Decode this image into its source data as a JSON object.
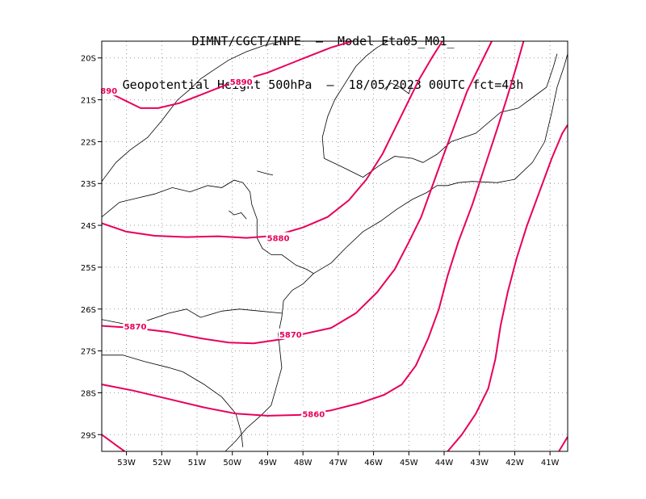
{
  "header": {
    "line1": "DIMNT/CGCT/INPE  –  Model Eta05_M01_",
    "line2": "Geopotential Height 500hPa  –  18/05/2023 00UTC fct=43h"
  },
  "colors": {
    "contour": "#e8005a",
    "coast": "#000000",
    "grid": "#9a9a9a"
  },
  "map": {
    "lon_range": [
      -53.7,
      -40.5
    ],
    "lat_range": [
      -29.4,
      -19.6
    ],
    "lat_ticks": [
      {
        "value": -20,
        "label": "20S"
      },
      {
        "value": -21,
        "label": "21S"
      },
      {
        "value": -22,
        "label": "22S"
      },
      {
        "value": -23,
        "label": "23S"
      },
      {
        "value": -24,
        "label": "24S"
      },
      {
        "value": -25,
        "label": "25S"
      },
      {
        "value": -26,
        "label": "26S"
      },
      {
        "value": -27,
        "label": "27S"
      },
      {
        "value": -28,
        "label": "28S"
      },
      {
        "value": -29,
        "label": "29S"
      }
    ],
    "lon_ticks": [
      {
        "value": -53,
        "label": "53W"
      },
      {
        "value": -52,
        "label": "52W"
      },
      {
        "value": -51,
        "label": "51W"
      },
      {
        "value": -50,
        "label": "50W"
      },
      {
        "value": -49,
        "label": "49W"
      },
      {
        "value": -48,
        "label": "48W"
      },
      {
        "value": -47,
        "label": "47W"
      },
      {
        "value": -46,
        "label": "46W"
      },
      {
        "value": -45,
        "label": "45W"
      },
      {
        "value": -44,
        "label": "44W"
      },
      {
        "value": -43,
        "label": "43W"
      },
      {
        "value": -42,
        "label": "42W"
      },
      {
        "value": -41,
        "label": "41W"
      }
    ],
    "contours": [
      {
        "label": "5890",
        "points": [
          [
            -53.7,
            -20.75
          ],
          [
            -53.2,
            -20.95
          ],
          [
            -52.6,
            -21.2
          ],
          [
            -52.1,
            -21.2
          ],
          [
            -51.5,
            -21.08
          ],
          [
            -50.8,
            -20.85
          ],
          [
            -50.2,
            -20.65
          ],
          [
            -49.6,
            -20.5
          ],
          [
            -49.0,
            -20.35
          ],
          [
            -48.4,
            -20.15
          ],
          [
            -47.8,
            -19.95
          ],
          [
            -47.2,
            -19.75
          ],
          [
            -46.6,
            -19.6
          ]
        ],
        "labels": [
          {
            "text": "5890",
            "lon": -49.75,
            "lat": -20.56
          },
          {
            "text": "890",
            "lon": -53.5,
            "lat": -20.78
          }
        ]
      },
      {
        "label": "5880",
        "points": [
          [
            -53.7,
            -23.95
          ],
          [
            -53.0,
            -24.15
          ],
          [
            -52.2,
            -24.25
          ],
          [
            -51.3,
            -24.28
          ],
          [
            -50.4,
            -24.26
          ],
          [
            -49.6,
            -24.3
          ],
          [
            -48.8,
            -24.25
          ],
          [
            -48.0,
            -24.05
          ],
          [
            -47.3,
            -23.8
          ],
          [
            -46.7,
            -23.4
          ],
          [
            -46.2,
            -22.9
          ],
          [
            -45.75,
            -22.3
          ],
          [
            -45.4,
            -21.7
          ],
          [
            -45.05,
            -21.1
          ],
          [
            -44.7,
            -20.5
          ],
          [
            -44.35,
            -20.0
          ],
          [
            -44.05,
            -19.6
          ]
        ],
        "labels": [
          {
            "text": "5880",
            "lon": -48.7,
            "lat": -24.3
          }
        ]
      },
      {
        "label": "5870",
        "points": [
          [
            -53.7,
            -26.4
          ],
          [
            -52.8,
            -26.45
          ],
          [
            -51.8,
            -26.55
          ],
          [
            -50.9,
            -26.7
          ],
          [
            -50.1,
            -26.8
          ],
          [
            -49.4,
            -26.82
          ],
          [
            -48.6,
            -26.72
          ],
          [
            -47.9,
            -26.58
          ],
          [
            -47.2,
            -26.45
          ],
          [
            -46.5,
            -26.1
          ],
          [
            -45.9,
            -25.6
          ],
          [
            -45.4,
            -25.05
          ],
          [
            -45.0,
            -24.4
          ],
          [
            -44.65,
            -23.8
          ],
          [
            -44.35,
            -23.1
          ],
          [
            -44.05,
            -22.4
          ],
          [
            -43.7,
            -21.6
          ],
          [
            -43.35,
            -20.8
          ],
          [
            -43.0,
            -20.2
          ],
          [
            -42.65,
            -19.6
          ]
        ],
        "labels": [
          {
            "text": "5870",
            "lon": -52.75,
            "lat": -26.41
          },
          {
            "text": "5870",
            "lon": -48.35,
            "lat": -26.6
          }
        ]
      },
      {
        "label": "5860",
        "points": [
          [
            -53.7,
            -27.8
          ],
          [
            -52.8,
            -27.95
          ],
          [
            -51.8,
            -28.15
          ],
          [
            -50.8,
            -28.35
          ],
          [
            -49.9,
            -28.5
          ],
          [
            -49.0,
            -28.55
          ],
          [
            -48.1,
            -28.53
          ],
          [
            -47.2,
            -28.42
          ],
          [
            -46.4,
            -28.25
          ],
          [
            -45.7,
            -28.05
          ],
          [
            -45.2,
            -27.8
          ],
          [
            -44.8,
            -27.35
          ],
          [
            -44.45,
            -26.7
          ],
          [
            -44.15,
            -26.0
          ],
          [
            -43.9,
            -25.2
          ],
          [
            -43.6,
            -24.4
          ],
          [
            -43.2,
            -23.5
          ],
          [
            -42.85,
            -22.6
          ],
          [
            -42.5,
            -21.7
          ],
          [
            -42.2,
            -20.9
          ],
          [
            -41.95,
            -20.2
          ],
          [
            -41.75,
            -19.6
          ]
        ],
        "labels": [
          {
            "text": "5860",
            "lon": -47.7,
            "lat": -28.5
          }
        ]
      },
      {
        "label": "",
        "points": [
          [
            -53.7,
            -29.0
          ],
          [
            -53.3,
            -29.25
          ],
          [
            -53.05,
            -29.4
          ]
        ],
        "labels": []
      },
      {
        "label": "",
        "points": [
          [
            -43.9,
            -29.4
          ],
          [
            -43.5,
            -29.0
          ],
          [
            -43.1,
            -28.5
          ],
          [
            -42.75,
            -27.9
          ],
          [
            -42.55,
            -27.2
          ],
          [
            -42.4,
            -26.4
          ],
          [
            -42.2,
            -25.6
          ],
          [
            -41.95,
            -24.8
          ],
          [
            -41.65,
            -24.0
          ],
          [
            -41.3,
            -23.2
          ],
          [
            -40.95,
            -22.4
          ],
          [
            -40.65,
            -21.8
          ],
          [
            -40.5,
            -21.6
          ]
        ],
        "labels": []
      },
      {
        "label": "",
        "points": [
          [
            -40.75,
            -29.4
          ],
          [
            -40.5,
            -29.05
          ]
        ],
        "labels": []
      }
    ],
    "coastlines": [
      [
        [
          -53.7,
          -22.95
        ],
        [
          -53.3,
          -22.5
        ],
        [
          -52.9,
          -22.2
        ],
        [
          -52.4,
          -21.9
        ],
        [
          -52.0,
          -21.5
        ],
        [
          -51.55,
          -21.0
        ],
        [
          -51.2,
          -20.75
        ],
        [
          -50.9,
          -20.5
        ],
        [
          -50.55,
          -20.3
        ],
        [
          -50.1,
          -20.05
        ],
        [
          -49.6,
          -19.85
        ],
        [
          -49.1,
          -19.7
        ],
        [
          -48.6,
          -19.6
        ]
      ],
      [
        [
          -53.7,
          -23.8
        ],
        [
          -53.2,
          -23.45
        ],
        [
          -52.7,
          -23.35
        ],
        [
          -52.2,
          -23.25
        ],
        [
          -51.7,
          -23.1
        ],
        [
          -51.2,
          -23.2
        ],
        [
          -50.7,
          -23.05
        ],
        [
          -50.3,
          -23.1
        ],
        [
          -49.95,
          -22.92
        ],
        [
          -49.7,
          -22.98
        ],
        [
          -49.5,
          -23.2
        ],
        [
          -49.45,
          -23.5
        ],
        [
          -49.3,
          -23.85
        ],
        [
          -49.3,
          -24.3
        ],
        [
          -49.15,
          -24.55
        ],
        [
          -48.9,
          -24.7
        ],
        [
          -48.6,
          -24.7
        ],
        [
          -48.2,
          -24.95
        ],
        [
          -47.9,
          -25.05
        ],
        [
          -47.7,
          -25.15
        ]
      ],
      [
        [
          -47.7,
          -25.15
        ],
        [
          -47.2,
          -24.9
        ],
        [
          -46.8,
          -24.55
        ],
        [
          -46.3,
          -24.15
        ],
        [
          -45.8,
          -23.9
        ],
        [
          -45.35,
          -23.62
        ],
        [
          -44.9,
          -23.38
        ],
        [
          -44.5,
          -23.22
        ],
        [
          -44.2,
          -23.05
        ],
        [
          -43.9,
          -23.05
        ],
        [
          -43.6,
          -22.98
        ],
        [
          -43.2,
          -22.95
        ],
        [
          -42.5,
          -22.98
        ],
        [
          -42.0,
          -22.9
        ],
        [
          -41.5,
          -22.5
        ],
        [
          -41.15,
          -22.0
        ],
        [
          -40.95,
          -21.3
        ],
        [
          -40.8,
          -20.7
        ],
        [
          -40.6,
          -20.2
        ],
        [
          -40.5,
          -19.9
        ]
      ],
      [
        [
          -47.7,
          -25.15
        ],
        [
          -48.0,
          -25.4
        ],
        [
          -48.3,
          -25.55
        ],
        [
          -48.55,
          -25.8
        ],
        [
          -48.6,
          -26.2
        ],
        [
          -48.7,
          -26.6
        ],
        [
          -48.65,
          -27.0
        ],
        [
          -48.6,
          -27.4
        ],
        [
          -48.75,
          -27.85
        ],
        [
          -48.9,
          -28.3
        ],
        [
          -49.2,
          -28.55
        ],
        [
          -49.6,
          -28.85
        ],
        [
          -49.9,
          -29.15
        ],
        [
          -50.2,
          -29.4
        ]
      ],
      [
        [
          -53.7,
          -26.25
        ],
        [
          -53.1,
          -26.35
        ],
        [
          -52.5,
          -26.3
        ],
        [
          -51.8,
          -26.1
        ],
        [
          -51.3,
          -26.0
        ],
        [
          -50.9,
          -26.2
        ],
        [
          -50.3,
          -26.05
        ],
        [
          -49.8,
          -26.0
        ],
        [
          -49.2,
          -26.05
        ],
        [
          -48.6,
          -26.1
        ]
      ],
      [
        [
          -53.7,
          -27.1
        ],
        [
          -53.1,
          -27.1
        ],
        [
          -52.5,
          -27.25
        ],
        [
          -51.8,
          -27.4
        ],
        [
          -51.4,
          -27.5
        ],
        [
          -50.8,
          -27.8
        ],
        [
          -50.3,
          -28.1
        ],
        [
          -49.9,
          -28.5
        ],
        [
          -49.75,
          -28.95
        ],
        [
          -49.7,
          -29.3
        ]
      ],
      [
        [
          -47.4,
          -22.4
        ],
        [
          -46.9,
          -22.6
        ],
        [
          -46.3,
          -22.85
        ],
        [
          -45.8,
          -22.55
        ],
        [
          -45.4,
          -22.35
        ],
        [
          -44.9,
          -22.4
        ],
        [
          -44.6,
          -22.5
        ],
        [
          -44.2,
          -22.3
        ],
        [
          -43.8,
          -22.0
        ],
        [
          -43.1,
          -21.8
        ],
        [
          -42.4,
          -21.3
        ],
        [
          -41.9,
          -21.2
        ],
        [
          -41.5,
          -20.95
        ],
        [
          -41.1,
          -20.7
        ],
        [
          -40.9,
          -20.2
        ],
        [
          -40.8,
          -19.9
        ]
      ],
      [
        [
          -47.4,
          -22.4
        ],
        [
          -47.45,
          -21.9
        ],
        [
          -47.3,
          -21.4
        ],
        [
          -47.1,
          -21.0
        ],
        [
          -46.8,
          -20.6
        ],
        [
          -46.5,
          -20.2
        ],
        [
          -46.2,
          -19.95
        ],
        [
          -45.9,
          -19.75
        ],
        [
          -45.6,
          -19.6
        ]
      ],
      [
        [
          -45.7,
          -20.75
        ],
        [
          -45.5,
          -20.6
        ],
        [
          -45.25,
          -20.7
        ],
        [
          -45.0,
          -20.85
        ],
        [
          -44.9,
          -20.6
        ]
      ],
      [
        [
          -50.1,
          -23.65
        ],
        [
          -49.95,
          -23.75
        ],
        [
          -49.75,
          -23.7
        ],
        [
          -49.6,
          -23.85
        ]
      ],
      [
        [
          -49.3,
          -22.7
        ],
        [
          -49.1,
          -22.75
        ],
        [
          -48.85,
          -22.8
        ]
      ]
    ]
  }
}
